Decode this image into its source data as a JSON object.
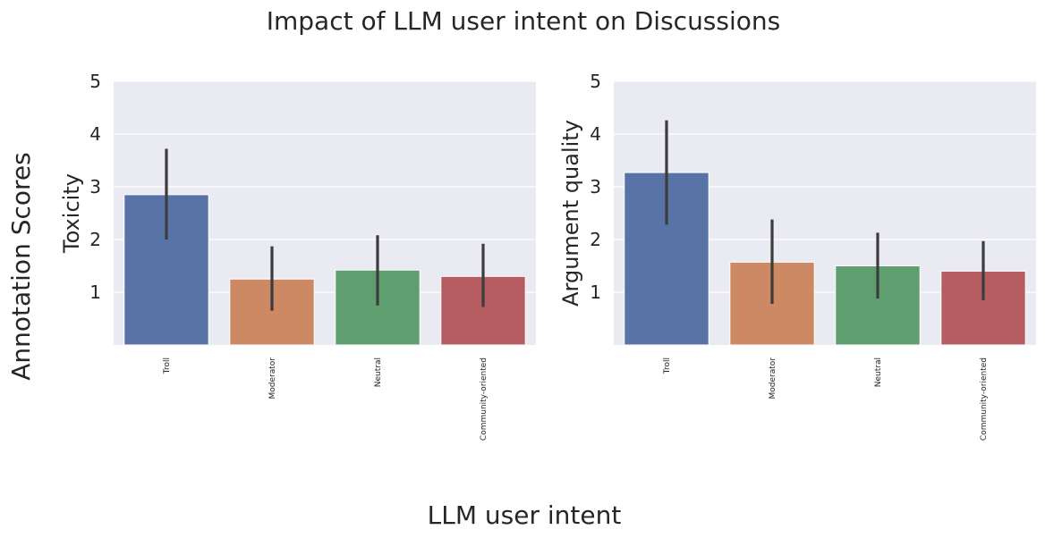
{
  "figure": {
    "title": "Impact of LLM user intent on Discussions",
    "sup_ylabel": "Annotation Scores",
    "sup_xlabel": "LLM user intent"
  },
  "colors": {
    "background": "#eaeaf2",
    "grid": "#ffffff",
    "errorbar": "#3c3c3c",
    "bars": [
      "#5874a6",
      "#cc8963",
      "#5f9e6e",
      "#b65d61"
    ]
  },
  "chart_data": [
    {
      "type": "bar",
      "categories": [
        "Troll",
        "Moderator",
        "Neutral",
        "Community-oriented"
      ],
      "values": [
        2.85,
        1.25,
        1.42,
        1.3
      ],
      "ci": [
        [
          2.0,
          3.72
        ],
        [
          0.65,
          1.87
        ],
        [
          0.75,
          2.08
        ],
        [
          0.72,
          1.92
        ]
      ],
      "ylabel": "Toxicity",
      "xlabel": "",
      "ylim": [
        0,
        5
      ],
      "yticks": [
        1,
        2,
        3,
        4,
        5
      ],
      "grid": true,
      "legend": "none"
    },
    {
      "type": "bar",
      "categories": [
        "Troll",
        "Moderator",
        "Neutral",
        "Community-oriented"
      ],
      "values": [
        3.27,
        1.57,
        1.5,
        1.4
      ],
      "ci": [
        [
          2.28,
          4.26
        ],
        [
          0.78,
          2.38
        ],
        [
          0.88,
          2.13
        ],
        [
          0.85,
          1.97
        ]
      ],
      "ylabel": "Argument quality",
      "xlabel": "",
      "ylim": [
        0,
        5
      ],
      "yticks": [
        1,
        2,
        3,
        4,
        5
      ],
      "grid": true,
      "legend": "none"
    }
  ]
}
